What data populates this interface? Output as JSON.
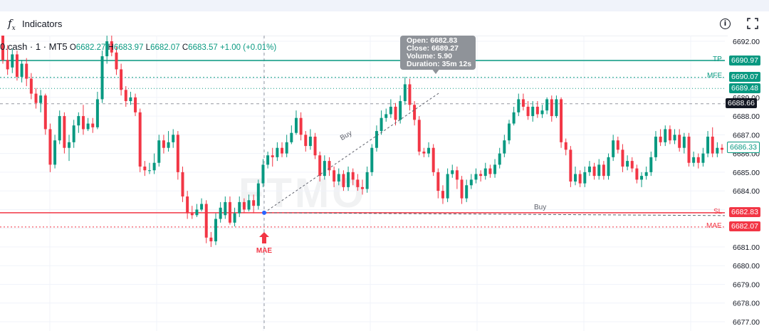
{
  "toolbar": {
    "indicators_label": "Indicators",
    "fx_icon": "function-icon",
    "info_icon": "info-icon",
    "fullscreen_icon": "fullscreen-icon"
  },
  "legend": {
    "symbol": "0.cash · 1 · MT5",
    "open_key": "O",
    "open": "6682.27",
    "high_key": "H",
    "high": "6683.97",
    "low_key": "L",
    "low": "6682.07",
    "close_key": "C",
    "close": "6683.57",
    "change": "+1.00 (+0.01%)"
  },
  "tooltip": {
    "open": "Open: 6682.83",
    "close": "Close: 6689.27",
    "volume": "Volume: 5.90",
    "duration": "Duration: 35m 12s"
  },
  "watermark": "FTMO",
  "markers": {
    "mae": "MAE",
    "buy_entry": "Buy",
    "buy_line": "Buy"
  },
  "levels": {
    "tp": {
      "label": "TP",
      "value": "6690.97",
      "color": "#089981"
    },
    "mfe": {
      "label": "MFE",
      "value": "6690.07",
      "color": "#089981"
    },
    "mfe2": {
      "value": "6689.48",
      "color": "#089981"
    },
    "cursor": {
      "value": "6688.66",
      "color": "#131722"
    },
    "last": {
      "value": "6686.33",
      "color": "#089981"
    },
    "sl": {
      "label": "SL",
      "value": "6682.83",
      "color": "#f23645"
    },
    "mae": {
      "label": "MAE",
      "value": "6682.07",
      "color": "#f23645"
    }
  },
  "colors": {
    "up": "#089981",
    "down": "#f23645",
    "grid": "#f0f3fa"
  },
  "chart_data": {
    "type": "candlestick",
    "y_ticks": [
      "6692.00",
      "6691.00",
      "6690.00",
      "6689.00",
      "6688.00",
      "6687.00",
      "6686.00",
      "6685.00",
      "6684.00",
      "6683.00",
      "6682.00",
      "6681.00",
      "6680.00",
      "6679.00",
      "6678.00",
      "6677.00"
    ],
    "ylim": [
      6676.8,
      6692.2
    ],
    "candles": [
      [
        6692.5,
        6691.0,
        6692.8,
        6690.8
      ],
      [
        6691.0,
        6690.5,
        6691.8,
        6690.2
      ],
      [
        6690.6,
        6691.3,
        6691.6,
        6690.3
      ],
      [
        6691.3,
        6690.1,
        6691.5,
        6689.9
      ],
      [
        6690.1,
        6690.8,
        6691.0,
        6689.8
      ],
      [
        6690.8,
        6690.0,
        6691.1,
        6689.6
      ],
      [
        6690.0,
        6689.2,
        6690.3,
        6688.9
      ],
      [
        6689.2,
        6688.7,
        6689.5,
        6688.4
      ],
      [
        6688.7,
        6689.1,
        6689.4,
        6688.2
      ],
      [
        6689.1,
        6687.3,
        6689.2,
        6687.0
      ],
      [
        6687.3,
        6685.4,
        6687.6,
        6685.0
      ],
      [
        6685.4,
        6686.7,
        6687.0,
        6685.2
      ],
      [
        6686.7,
        6688.0,
        6688.3,
        6686.5
      ],
      [
        6688.0,
        6686.3,
        6688.2,
        6686.0
      ],
      [
        6686.3,
        6686.6,
        6687.0,
        6685.6
      ],
      [
        6686.6,
        6687.5,
        6687.8,
        6686.3
      ],
      [
        6687.5,
        6688.0,
        6688.2,
        6687.1
      ],
      [
        6688.0,
        6687.3,
        6688.6,
        6687.0
      ],
      [
        6687.3,
        6687.6,
        6687.9,
        6687.2
      ],
      [
        6687.6,
        6687.4,
        6687.9,
        6687.1
      ],
      [
        6687.4,
        6688.9,
        6689.3,
        6687.3
      ],
      [
        6688.9,
        6691.2,
        6691.5,
        6688.7
      ],
      [
        6691.2,
        6692.0,
        6692.3,
        6690.8
      ],
      [
        6692.0,
        6691.4,
        6692.4,
        6691.2
      ],
      [
        6691.4,
        6690.5,
        6691.7,
        6690.2
      ],
      [
        6690.5,
        6689.4,
        6690.8,
        6689.1
      ],
      [
        6689.4,
        6688.8,
        6689.6,
        6688.5
      ],
      [
        6688.8,
        6689.0,
        6689.3,
        6688.6
      ],
      [
        6689.0,
        6688.2,
        6689.2,
        6688.0
      ],
      [
        6688.2,
        6685.3,
        6688.4,
        6685.0
      ],
      [
        6685.3,
        6685.1,
        6685.6,
        6684.8
      ],
      [
        6685.1,
        6685.1,
        6685.5,
        6684.9
      ],
      [
        6685.1,
        6685.5,
        6686.0,
        6684.9
      ],
      [
        6685.5,
        6686.7,
        6687.0,
        6685.3
      ],
      [
        6686.7,
        6686.3,
        6687.0,
        6686.0
      ],
      [
        6686.3,
        6686.6,
        6687.2,
        6686.1
      ],
      [
        6686.6,
        6687.0,
        6687.3,
        6686.3
      ],
      [
        6687.0,
        6685.0,
        6687.2,
        6684.6
      ],
      [
        6685.0,
        6683.7,
        6685.3,
        6683.4
      ],
      [
        6683.7,
        6682.8,
        6684.0,
        6682.5
      ],
      [
        6682.8,
        6682.7,
        6683.2,
        6682.5
      ],
      [
        6682.7,
        6683.0,
        6683.3,
        6682.6
      ],
      [
        6683.0,
        6683.3,
        6683.6,
        6682.9
      ],
      [
        6683.3,
        6681.5,
        6683.5,
        6681.2
      ],
      [
        6681.5,
        6681.3,
        6681.8,
        6681.0
      ],
      [
        6681.3,
        6682.5,
        6682.8,
        6681.1
      ],
      [
        6682.5,
        6683.1,
        6683.4,
        6682.3
      ],
      [
        6682.7,
        6683.4,
        6683.7,
        6682.5
      ],
      [
        6683.4,
        6682.3,
        6683.7,
        6682.2
      ],
      [
        6682.3,
        6682.8,
        6683.1,
        6682.1
      ],
      [
        6682.8,
        6683.4,
        6683.7,
        6682.6
      ],
      [
        6683.4,
        6683.0,
        6683.6,
        6682.8
      ],
      [
        6683.0,
        6683.5,
        6683.8,
        6682.9
      ],
      [
        6683.5,
        6683.2,
        6683.8,
        6682.8
      ],
      [
        6683.2,
        6684.4,
        6684.6,
        6683.0
      ],
      [
        6684.4,
        6685.4,
        6685.7,
        6684.2
      ],
      [
        6685.4,
        6685.9,
        6686.1,
        6685.2
      ],
      [
        6685.9,
        6685.8,
        6686.3,
        6685.3
      ],
      [
        6685.8,
        6686.3,
        6686.6,
        6685.6
      ],
      [
        6686.3,
        6686.0,
        6686.6,
        6685.8
      ],
      [
        6686.0,
        6686.6,
        6687.0,
        6685.8
      ],
      [
        6686.6,
        6687.1,
        6687.5,
        6686.5
      ],
      [
        6687.1,
        6687.9,
        6688.3,
        6687.0
      ],
      [
        6687.9,
        6687.0,
        6688.2,
        6686.7
      ],
      [
        6687.0,
        6686.4,
        6687.2,
        6686.1
      ],
      [
        6686.4,
        6686.9,
        6687.3,
        6686.2
      ],
      [
        6686.9,
        6685.9,
        6687.1,
        6685.7
      ],
      [
        6685.9,
        6684.8,
        6686.1,
        6684.5
      ],
      [
        6684.8,
        6685.6,
        6685.9,
        6684.6
      ],
      [
        6685.6,
        6685.1,
        6685.8,
        6684.8
      ],
      [
        6685.1,
        6684.5,
        6685.3,
        6684.2
      ],
      [
        6684.5,
        6684.9,
        6685.2,
        6684.3
      ],
      [
        6684.9,
        6684.2,
        6685.1,
        6684.0
      ],
      [
        6684.2,
        6685.0,
        6685.3,
        6684.0
      ],
      [
        6685.0,
        6684.6,
        6685.2,
        6684.3
      ],
      [
        6684.6,
        6684.2,
        6684.9,
        6684.0
      ],
      [
        6684.2,
        6684.1,
        6684.6,
        6683.8
      ],
      [
        6684.1,
        6685.0,
        6685.3,
        6683.9
      ],
      [
        6685.0,
        6686.3,
        6686.5,
        6684.8
      ],
      [
        6686.3,
        6687.2,
        6687.5,
        6686.1
      ],
      [
        6687.2,
        6687.9,
        6688.3,
        6687.0
      ],
      [
        6687.9,
        6688.1,
        6688.4,
        6687.7
      ],
      [
        6688.1,
        6688.5,
        6688.9,
        6687.9
      ],
      [
        6688.5,
        6687.8,
        6688.7,
        6687.5
      ],
      [
        6687.8,
        6688.8,
        6689.1,
        6687.6
      ],
      [
        6688.8,
        6689.7,
        6690.1,
        6688.6
      ],
      [
        6689.7,
        6688.6,
        6690.0,
        6688.3
      ],
      [
        6688.6,
        6687.8,
        6688.8,
        6687.5
      ],
      [
        6687.8,
        6686.1,
        6688.0,
        6685.9
      ],
      [
        6686.1,
        6686.0,
        6686.3,
        6685.8
      ],
      [
        6686.0,
        6686.3,
        6686.6,
        6685.8
      ],
      [
        6686.3,
        6685.0,
        6686.5,
        6684.8
      ],
      [
        6685.0,
        6684.0,
        6685.2,
        6683.6
      ],
      [
        6684.0,
        6683.6,
        6684.3,
        6683.3
      ],
      [
        6683.6,
        6684.9,
        6685.2,
        6683.4
      ],
      [
        6684.9,
        6685.1,
        6685.4,
        6684.7
      ],
      [
        6685.1,
        6684.6,
        6685.3,
        6684.1
      ],
      [
        6684.6,
        6683.6,
        6684.8,
        6683.3
      ],
      [
        6683.6,
        6684.3,
        6684.6,
        6683.4
      ],
      [
        6684.3,
        6684.6,
        6684.9,
        6684.1
      ],
      [
        6684.6,
        6684.9,
        6685.2,
        6684.4
      ],
      [
        6684.9,
        6684.8,
        6685.1,
        6684.5
      ],
      [
        6684.8,
        6685.2,
        6685.5,
        6684.6
      ],
      [
        6685.2,
        6684.9,
        6685.4,
        6684.7
      ],
      [
        6684.9,
        6685.4,
        6685.7,
        6684.7
      ],
      [
        6685.4,
        6686.0,
        6686.3,
        6685.2
      ],
      [
        6686.0,
        6686.7,
        6687.0,
        6685.8
      ],
      [
        6686.7,
        6687.6,
        6687.8,
        6686.5
      ],
      [
        6687.6,
        6688.2,
        6688.5,
        6687.5
      ],
      [
        6688.2,
        6688.9,
        6689.2,
        6688.0
      ],
      [
        6688.9,
        6688.5,
        6689.2,
        6688.3
      ],
      [
        6688.5,
        6688.0,
        6688.8,
        6687.8
      ],
      [
        6688.0,
        6688.5,
        6688.8,
        6687.7
      ],
      [
        6688.5,
        6688.1,
        6688.8,
        6687.9
      ],
      [
        6688.1,
        6688.3,
        6688.6,
        6687.9
      ],
      [
        6688.3,
        6688.9,
        6689.0,
        6688.1
      ],
      [
        6688.9,
        6688.0,
        6689.1,
        6687.7
      ],
      [
        6688.0,
        6688.9,
        6689.1,
        6687.9
      ],
      [
        6688.9,
        6686.6,
        6689.0,
        6686.3
      ],
      [
        6686.6,
        6686.2,
        6686.8,
        6685.9
      ],
      [
        6686.2,
        6684.5,
        6686.4,
        6684.2
      ],
      [
        6684.5,
        6684.9,
        6685.3,
        6684.3
      ],
      [
        6684.9,
        6684.4,
        6685.1,
        6684.2
      ],
      [
        6684.4,
        6685.0,
        6685.3,
        6684.2
      ],
      [
        6685.0,
        6685.3,
        6685.6,
        6684.8
      ],
      [
        6685.3,
        6684.8,
        6685.5,
        6684.6
      ],
      [
        6684.8,
        6685.4,
        6685.7,
        6684.6
      ],
      [
        6685.4,
        6684.8,
        6685.6,
        6684.6
      ],
      [
        6684.8,
        6685.8,
        6686.0,
        6684.6
      ],
      [
        6685.8,
        6686.7,
        6687.0,
        6685.6
      ],
      [
        6686.7,
        6686.2,
        6686.9,
        6686.0
      ],
      [
        6686.2,
        6685.3,
        6686.5,
        6685.0
      ],
      [
        6685.3,
        6685.6,
        6685.9,
        6685.1
      ],
      [
        6685.6,
        6685.2,
        6685.8,
        6685.0
      ],
      [
        6685.2,
        6684.6,
        6685.4,
        6684.4
      ],
      [
        6684.6,
        6684.8,
        6685.0,
        6684.2
      ],
      [
        6684.8,
        6685.0,
        6685.3,
        6684.6
      ],
      [
        6685.0,
        6685.8,
        6686.1,
        6684.8
      ],
      [
        6685.8,
        6686.9,
        6687.2,
        6685.6
      ],
      [
        6686.9,
        6686.6,
        6687.3,
        6686.4
      ],
      [
        6686.6,
        6687.3,
        6687.5,
        6686.4
      ],
      [
        6687.3,
        6686.7,
        6687.5,
        6686.5
      ],
      [
        6686.7,
        6687.0,
        6687.3,
        6686.5
      ],
      [
        6687.0,
        6686.3,
        6687.3,
        6686.1
      ],
      [
        6686.3,
        6686.9,
        6687.1,
        6686.0
      ],
      [
        6686.9,
        6685.5,
        6687.1,
        6685.3
      ],
      [
        6685.5,
        6685.8,
        6686.1,
        6685.3
      ],
      [
        6685.8,
        6685.5,
        6686.0,
        6685.2
      ],
      [
        6685.5,
        6686.0,
        6686.3,
        6685.3
      ],
      [
        6686.0,
        6686.9,
        6687.2,
        6685.8
      ],
      [
        6686.9,
        6686.0,
        6687.4,
        6685.8
      ],
      [
        6686.0,
        6686.3,
        6686.6,
        6685.8
      ],
      [
        6686.3,
        6686.2,
        6686.5,
        6686.0
      ]
    ],
    "trade": {
      "entry_price": 6682.83,
      "exit_price": 6689.27
    }
  }
}
